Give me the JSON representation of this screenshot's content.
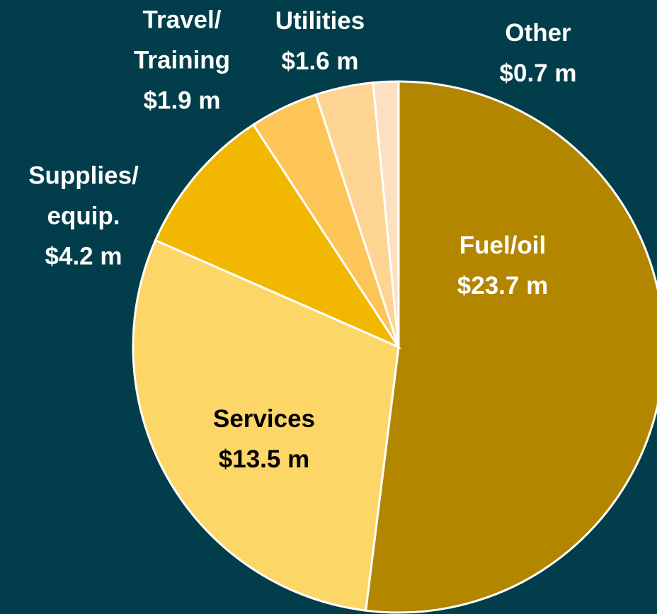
{
  "chart_data": {
    "type": "pie",
    "categories": [
      "Fuel/oil",
      "Services",
      "Supplies/\nequip.",
      "Travel/\nTraining",
      "Utilities",
      "Other"
    ],
    "values": [
      23.7,
      13.5,
      4.2,
      1.9,
      1.6,
      0.7
    ],
    "value_labels": [
      "$23.7 m",
      "$13.5 m",
      "$4.2 m",
      "$1.9 m",
      "$1.6 m",
      "$0.7 m"
    ],
    "colors": [
      "#b38600",
      "#fdd668",
      "#f2b700",
      "#fdc558",
      "#fdd491",
      "#fde0c0"
    ]
  }
}
